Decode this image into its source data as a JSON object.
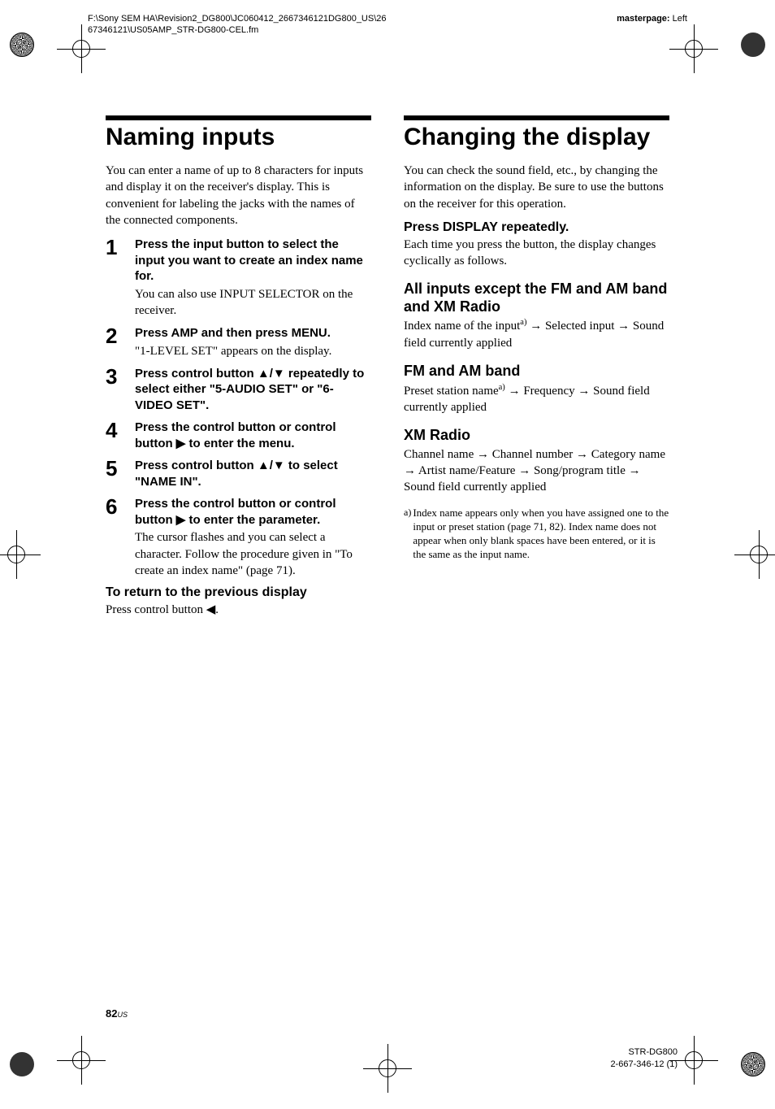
{
  "header": {
    "path": "F:\\Sony SEM HA\\Revision2_DG800\\JC060412_2667346121DG800_US\\2667346121\\US05AMP_STR-DG800-CEL.fm",
    "master_label": "masterpage:",
    "master_value": "Left"
  },
  "left": {
    "title": "Naming inputs",
    "intro": "You can enter a name of up to 8 characters for inputs and display it on the receiver's display. This is convenient for labeling the jacks with the names of the connected components.",
    "steps": [
      {
        "num": "1",
        "bold": "Press the input button to select the input you want to create an index name for.",
        "plain": "You can also use INPUT SELECTOR on the receiver."
      },
      {
        "num": "2",
        "bold": "Press AMP and then press MENU.",
        "plain": "\"1-LEVEL SET\" appears on the display."
      },
      {
        "num": "3",
        "bold": "Press control button ▲/▼ repeatedly to select either \"5-AUDIO SET\" or \"6-VIDEO SET\".",
        "plain": ""
      },
      {
        "num": "4",
        "bold": "Press the control button or control button ▶ to enter the menu.",
        "plain": ""
      },
      {
        "num": "5",
        "bold": "Press control button ▲/▼ to select \"NAME IN\".",
        "plain": ""
      },
      {
        "num": "6",
        "bold": "Press the control button or control button ▶ to enter the parameter.",
        "plain": "The cursor flashes and you can select a character. Follow the procedure given in \"To create an index name\" (page 71)."
      }
    ],
    "return_h": "To return to the previous display",
    "return_p": "Press control button ◀."
  },
  "right": {
    "title": "Changing the display",
    "intro": "You can check the sound field, etc., by changing the information on the display. Be sure to use the buttons on the receiver for this operation.",
    "press_h": "Press DISPLAY repeatedly.",
    "press_p": "Each time you press the button, the display changes cyclically as follows.",
    "sec1_h": "All inputs except the FM and AM band and XM Radio",
    "sec1_p_pre": "Index name of the input",
    "sec1_p_post": " → Selected input → Sound field currently applied",
    "sec2_h": "FM and AM band",
    "sec2_p_pre": "Preset station name",
    "sec2_p_post": " → Frequency → Sound field currently applied",
    "sec3_h": "XM Radio",
    "sec3_p": "Channel name → Channel number → Category name → Artist name/Feature → Song/program title → Sound field currently applied",
    "footnote_mark": "a)",
    "footnote": "Index name appears only when you have assigned one to the input or preset station (page 71, 82). Index name does not appear when only blank spaces have been entered, or it is the same as the input name."
  },
  "footer": {
    "page": "82",
    "us": "US",
    "model": "STR-DG800",
    "code": "2-667-346-12 (1)"
  }
}
